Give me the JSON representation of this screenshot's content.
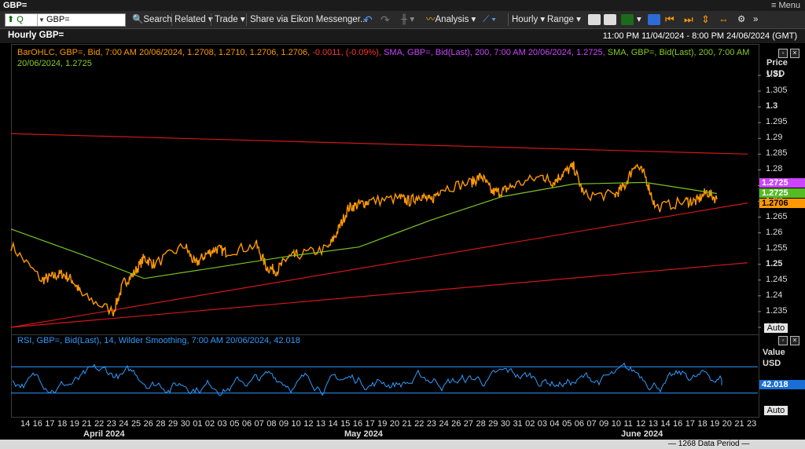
{
  "window": {
    "title": "GBP=",
    "menu_label": "Menu",
    "menu_icon": "menu-icon"
  },
  "toolbar": {
    "ric_prefix": "Q",
    "ric_value": "GBP=",
    "search_label": "Search",
    "related_label": "Related",
    "trade_label": "Trade",
    "share_label": "Share via Eikon Messenger...",
    "analysis_label": "Analysis",
    "hourly_label": "Hourly",
    "range_label": "Range"
  },
  "header": {
    "title": "Hourly GBP=",
    "date_range": "11:00 PM 11/04/2024 - 8:00 PM 24/06/2024 (GMT)"
  },
  "legend": {
    "bar_text": "BarOHLC, GBP=, Bid, 7:00 AM 20/06/2024, 1.2708, 1.2710, 1.2706, 1.2706,",
    "change_text": "-0.0011, (-0.09%),",
    "sma1_text": "SMA, GBP=, Bid(Last), 200, 7:00 AM 20/06/2024, 1.2725,",
    "sma2_text": "SMA, GBP=, Bid(Last), 200, 7:00 AM 20/06/2024, 1.2725",
    "colors": {
      "bar": "#ff9900",
      "change": "#ff3030",
      "sma1": "#cc44ff",
      "sma2": "#88cc22"
    }
  },
  "price_axis": {
    "title": "Price",
    "unit": "USD",
    "ticks": [
      "1.31",
      "1.305",
      "1.3",
      "1.295",
      "1.29",
      "1.285",
      "1.28",
      "1.275",
      "1.27",
      "1.265",
      "1.26",
      "1.255",
      "1.25",
      "1.245",
      "1.24",
      "1.235",
      "1.23"
    ],
    "tag_sma": "1.2725",
    "tag_sma_green": "1.2725",
    "tag_last": "1.2706",
    "auto_label": "Auto"
  },
  "rsi": {
    "legend": "RSI, GBP=, Bid(Last), 14, Wilder Smoothing, 7:00 AM 20/06/2024, 42.018",
    "axis_title": "Value",
    "axis_unit": "USD",
    "tag": "42.018",
    "auto_label": "Auto"
  },
  "x_axis": {
    "days": [
      "14",
      "16",
      "17",
      "18",
      "19",
      "21",
      "22",
      "23",
      "24",
      "25",
      "26",
      "28",
      "29",
      "30",
      "01",
      "02",
      "03",
      "05",
      "06",
      "07",
      "08",
      "09",
      "10",
      "12",
      "13",
      "14",
      "15",
      "16",
      "17",
      "19",
      "20",
      "21",
      "22",
      "23",
      "24",
      "26",
      "27",
      "28",
      "29",
      "30",
      "31",
      "02",
      "03",
      "04",
      "05",
      "06",
      "07",
      "09",
      "10",
      "11",
      "12",
      "13",
      "14",
      "16",
      "17",
      "18",
      "19",
      "20",
      "21",
      "23"
    ],
    "months": [
      "April 2024",
      "May 2024",
      "June 2024"
    ]
  },
  "footer": {
    "data_period": "1268 Data Period"
  },
  "chart_data": {
    "type": "line",
    "title": "Hourly GBP=",
    "ylabel": "Price USD",
    "ylim": [
      1.228,
      1.313
    ],
    "x_range": [
      "11/04/2024 23:00",
      "24/06/2024 20:00"
    ],
    "series": [
      {
        "name": "BarOHLC, GBP=, Bid",
        "x": [
          "2024-04-12",
          "2024-04-15",
          "2024-04-16",
          "2024-04-17",
          "2024-04-18",
          "2024-04-19",
          "2024-04-22",
          "2024-04-23",
          "2024-04-24",
          "2024-04-25",
          "2024-04-26",
          "2024-04-29",
          "2024-04-30",
          "2024-05-01",
          "2024-05-02",
          "2024-05-03",
          "2024-05-06",
          "2024-05-07",
          "2024-05-08",
          "2024-05-09",
          "2024-05-10",
          "2024-05-13",
          "2024-05-14",
          "2024-05-15",
          "2024-05-16",
          "2024-05-17",
          "2024-05-20",
          "2024-05-21",
          "2024-05-22",
          "2024-05-23",
          "2024-05-24",
          "2024-05-27",
          "2024-05-28",
          "2024-05-29",
          "2024-05-30",
          "2024-05-31",
          "2024-06-03",
          "2024-06-04",
          "2024-06-05",
          "2024-06-06",
          "2024-06-07",
          "2024-06-10",
          "2024-06-11",
          "2024-06-12",
          "2024-06-13",
          "2024-06-14",
          "2024-06-17",
          "2024-06-18",
          "2024-06-19",
          "2024-06-20"
        ],
        "values": [
          1.256,
          1.245,
          1.246,
          1.247,
          1.245,
          1.24,
          1.235,
          1.244,
          1.247,
          1.252,
          1.25,
          1.256,
          1.25,
          1.253,
          1.255,
          1.254,
          1.256,
          1.249,
          1.248,
          1.252,
          1.253,
          1.255,
          1.261,
          1.268,
          1.269,
          1.27,
          1.271,
          1.27,
          1.272,
          1.27,
          1.274,
          1.276,
          1.278,
          1.273,
          1.273,
          1.275,
          1.278,
          1.276,
          1.279,
          1.281,
          1.272,
          1.272,
          1.275,
          1.282,
          1.278,
          1.268,
          1.27,
          1.27,
          1.273,
          1.2706
        ]
      },
      {
        "name": "SMA, GBP=, Bid(Last), 200",
        "x": [
          "2024-04-12",
          "2024-04-19",
          "2024-04-25",
          "2024-05-02",
          "2024-05-09",
          "2024-05-16",
          "2024-05-23",
          "2024-05-30",
          "2024-06-06",
          "2024-06-13",
          "2024-06-20"
        ],
        "values": [
          1.2612,
          1.253,
          1.2455,
          1.249,
          1.2525,
          1.2555,
          1.264,
          1.2715,
          1.2755,
          1.276,
          1.2725
        ]
      }
    ],
    "lines": [
      {
        "name": "resistance",
        "x": [
          "2024-04-12",
          "2024-06-23"
        ],
        "values": [
          1.2915,
          1.285
        ]
      },
      {
        "name": "support-1",
        "x": [
          "2024-04-12",
          "2024-06-23"
        ],
        "values": [
          1.23,
          1.2695
        ]
      },
      {
        "name": "support-2",
        "x": [
          "2024-04-12",
          "2024-06-23"
        ],
        "values": [
          1.23,
          1.2505
        ]
      }
    ],
    "rsi": {
      "name": "RSI, GBP=, Bid(Last), 14, Wilder Smoothing",
      "last": 42.018,
      "bands": [
        70,
        30
      ]
    }
  }
}
